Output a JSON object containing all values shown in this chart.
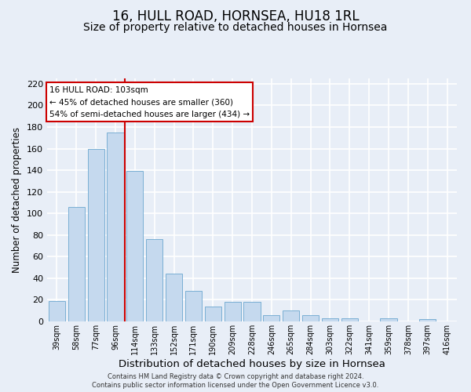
{
  "title": "16, HULL ROAD, HORNSEA, HU18 1RL",
  "subtitle": "Size of property relative to detached houses in Hornsea",
  "xlabel": "Distribution of detached houses by size in Hornsea",
  "ylabel": "Number of detached properties",
  "bar_labels": [
    "39sqm",
    "58sqm",
    "77sqm",
    "96sqm",
    "114sqm",
    "133sqm",
    "152sqm",
    "171sqm",
    "190sqm",
    "209sqm",
    "228sqm",
    "246sqm",
    "265sqm",
    "284sqm",
    "303sqm",
    "322sqm",
    "341sqm",
    "359sqm",
    "378sqm",
    "397sqm",
    "416sqm"
  ],
  "bar_values": [
    19,
    106,
    160,
    175,
    139,
    76,
    44,
    28,
    14,
    18,
    18,
    6,
    10,
    6,
    3,
    3,
    0,
    3,
    0,
    2,
    0
  ],
  "bar_color": "#c5d9ee",
  "bar_edge_color": "#7aafd4",
  "vline_x": 3.5,
  "vline_color": "#cc0000",
  "annotation_title": "16 HULL ROAD: 103sqm",
  "annotation_line1": "← 45% of detached houses are smaller (360)",
  "annotation_line2": "54% of semi-detached houses are larger (434) →",
  "ylim": [
    0,
    225
  ],
  "yticks": [
    0,
    20,
    40,
    60,
    80,
    100,
    120,
    140,
    160,
    180,
    200,
    220
  ],
  "footer1": "Contains HM Land Registry data © Crown copyright and database right 2024.",
  "footer2": "Contains public sector information licensed under the Open Government Licence v3.0.",
  "background_color": "#e8eef7",
  "plot_bg_color": "#e8eef7",
  "grid_color": "#ffffff",
  "title_fontsize": 12,
  "subtitle_fontsize": 10,
  "xlabel_fontsize": 9.5,
  "ylabel_fontsize": 8.5
}
